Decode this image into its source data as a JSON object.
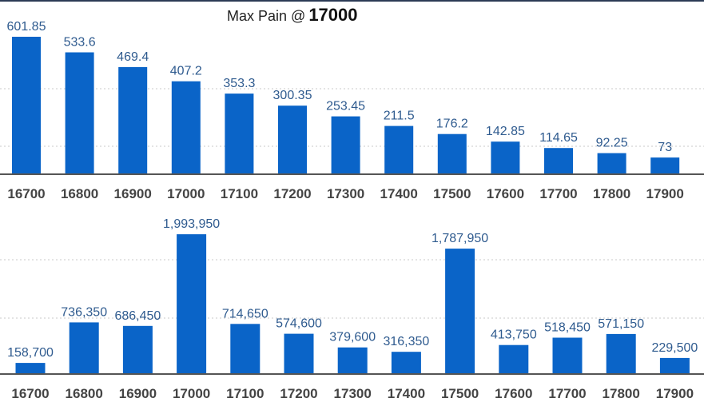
{
  "header": {
    "title": "Max Pain @",
    "value": "17000"
  },
  "colors": {
    "bar": "#0a64c8",
    "value_label": "#2f5b8f",
    "tick_label": "#444444",
    "grid": "#c8c8c8",
    "axis": "#555555"
  },
  "chart_data": [
    {
      "type": "bar",
      "categories": [
        "16700",
        "16800",
        "16900",
        "17000",
        "17100",
        "17200",
        "17300",
        "17400",
        "17500",
        "17600",
        "17700",
        "17800",
        "17900"
      ],
      "values": [
        601.85,
        533.6,
        469.4,
        407.2,
        353.3,
        300.35,
        253.45,
        211.5,
        176.2,
        142.85,
        114.65,
        92.25,
        73
      ],
      "value_labels": [
        "601.85",
        "533.6",
        "469.4",
        "407.2",
        "353.3",
        "300.35",
        "253.45",
        "211.5",
        "176.2",
        "142.85",
        "114.65",
        "92.25",
        "73"
      ],
      "ylim": [
        0,
        700
      ],
      "grid": true
    },
    {
      "type": "bar",
      "categories": [
        "16700",
        "16800",
        "16900",
        "17000",
        "17100",
        "17200",
        "17300",
        "17400",
        "17500",
        "17600",
        "17700",
        "17800",
        "17900"
      ],
      "values": [
        158700,
        736350,
        686450,
        1993950,
        714650,
        574600,
        379600,
        316350,
        1787950,
        413750,
        518450,
        571150,
        229500
      ],
      "value_labels": [
        "158,700",
        "736,350",
        "686,450",
        "1,993,950",
        "714,650",
        "574,600",
        "379,600",
        "316,350",
        "1,787,950",
        "413,750",
        "518,450",
        "571,150",
        "229,500"
      ],
      "ylim": [
        0,
        2200000
      ],
      "grid": true
    }
  ]
}
